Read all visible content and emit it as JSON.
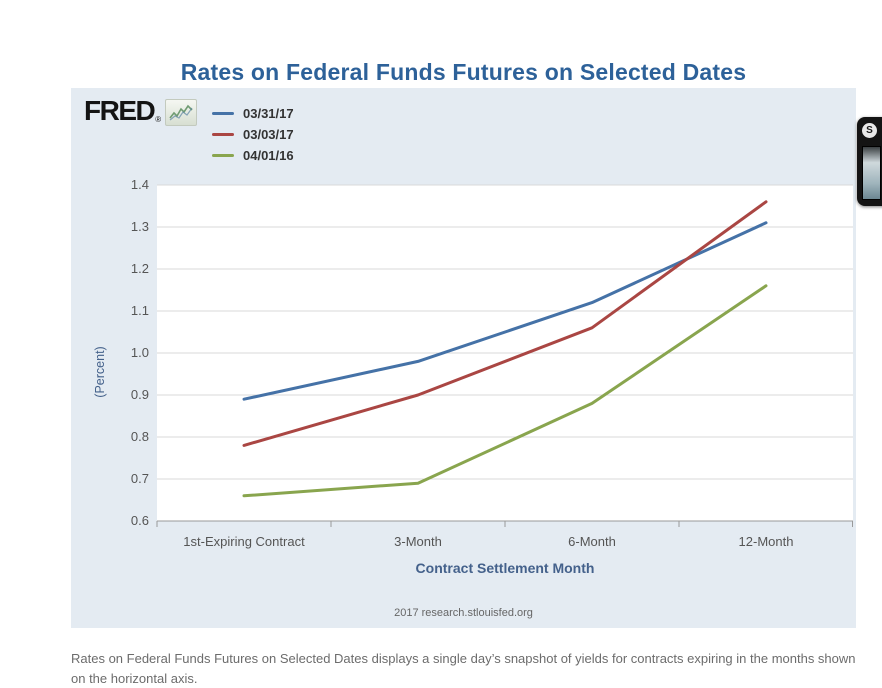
{
  "title": "Rates on Federal Funds Futures on Selected Dates",
  "logo": {
    "text": "FRED",
    "reg": "®"
  },
  "footer": "2017 research.stlouisfed.org",
  "caption": "Rates on Federal Funds Futures on Selected Dates displays a single day’s snapshot of yields for contracts expiring in the months shown on the horizontal axis.",
  "edge_widget": {
    "badge": "S"
  },
  "colors": {
    "title": "#2d6199",
    "panel_background": "#e4ebf2",
    "plot_background": "#ffffff",
    "gridline": "#d9d9d9",
    "axis_line": "#999999",
    "tick_label": "#555555",
    "axis_title": "#44618b",
    "legend_text": "#333333"
  },
  "chart_data": {
    "type": "line",
    "title": "Rates on Federal Funds Futures on Selected Dates",
    "categories": [
      "1st-Expiring Contract",
      "3-Month",
      "6-Month",
      "12-Month"
    ],
    "series": [
      {
        "name": "03/31/17",
        "color": "#4572a7",
        "values": [
          0.89,
          0.98,
          1.12,
          1.31
        ]
      },
      {
        "name": "03/03/17",
        "color": "#aa4643",
        "values": [
          0.78,
          0.9,
          1.06,
          1.36
        ]
      },
      {
        "name": "04/01/16",
        "color": "#89a54e",
        "values": [
          0.66,
          0.69,
          0.88,
          1.16
        ]
      }
    ],
    "xlabel": "Contract Settlement Month",
    "ylabel": "(Percent)",
    "ylim": [
      0.6,
      1.4
    ],
    "yticks": [
      "0.6",
      "0.7",
      "0.8",
      "0.9",
      "1.0",
      "1.1",
      "1.2",
      "1.3",
      "1.4"
    ],
    "grid": true,
    "legend_position": "top-left"
  }
}
